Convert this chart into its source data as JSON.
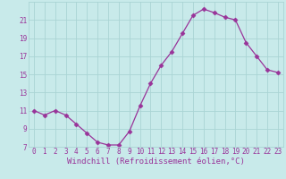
{
  "x": [
    0,
    1,
    2,
    3,
    4,
    5,
    6,
    7,
    8,
    9,
    10,
    11,
    12,
    13,
    14,
    15,
    16,
    17,
    18,
    19,
    20,
    21,
    22,
    23
  ],
  "y": [
    11.0,
    10.5,
    11.0,
    10.5,
    9.5,
    8.5,
    7.5,
    7.2,
    7.2,
    8.7,
    11.5,
    14.0,
    16.0,
    17.5,
    19.5,
    21.5,
    22.2,
    21.8,
    21.3,
    21.0,
    18.5,
    17.0,
    15.5,
    15.2
  ],
  "line_color": "#993399",
  "marker": "D",
  "marker_size": 2.5,
  "bg_color": "#c8eaea",
  "grid_color": "#aad4d4",
  "tick_label_color": "#993399",
  "xlabel": "Windchill (Refroidissement éolien,°C)",
  "xlabel_color": "#993399",
  "xlim": [
    -0.5,
    23.5
  ],
  "ylim": [
    7,
    23
  ],
  "yticks": [
    7,
    9,
    11,
    13,
    15,
    17,
    19,
    21
  ],
  "xticks": [
    0,
    1,
    2,
    3,
    4,
    5,
    6,
    7,
    8,
    9,
    10,
    11,
    12,
    13,
    14,
    15,
    16,
    17,
    18,
    19,
    20,
    21,
    22,
    23
  ],
  "font_size_ticks": 5.5,
  "font_size_xlabel": 6.5
}
